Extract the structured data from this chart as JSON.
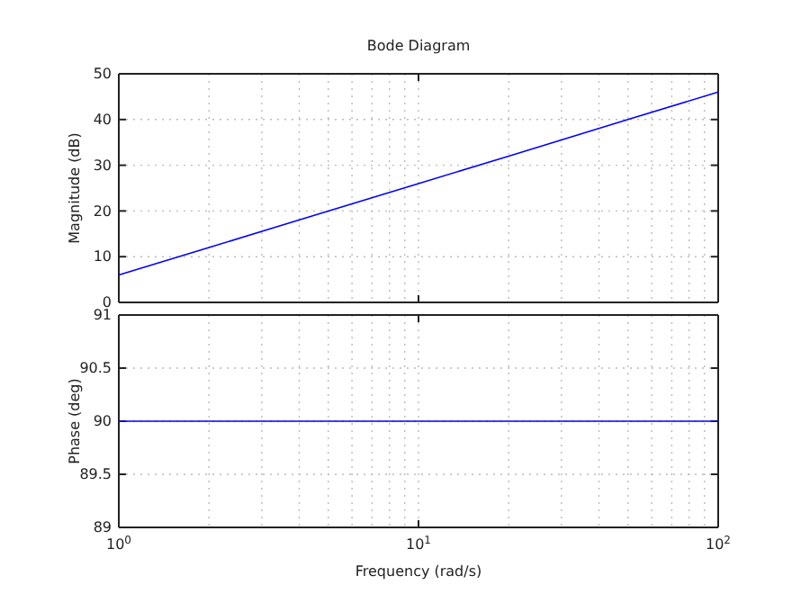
{
  "chart_data": [
    {
      "type": "line",
      "title": "Bode Diagram",
      "ylabel": "Magnitude (dB)",
      "x": [
        1,
        2,
        5,
        10,
        20,
        50,
        100
      ],
      "series": [
        {
          "color": "#0000ff",
          "values": [
            6,
            12,
            20,
            26,
            32,
            40,
            46
          ]
        }
      ],
      "xlim": [
        1,
        100
      ],
      "xticks": [
        {
          "value": 1,
          "label": null
        },
        {
          "value": 10,
          "label": null
        },
        {
          "value": 100,
          "label": null
        }
      ],
      "ylim": [
        0,
        50
      ],
      "yticks": [
        0,
        10,
        20,
        30,
        40,
        50
      ],
      "log": "x",
      "grid": true,
      "tick_labels": "y",
      "line_style": "solid"
    },
    {
      "type": "line",
      "xlabel": "Frequency (rad/s)",
      "ylabel": "Phase (deg)",
      "x": [
        1,
        2,
        5,
        10,
        20,
        50,
        100
      ],
      "series": [
        {
          "color": "#0000ff",
          "values": [
            90,
            90,
            90,
            90,
            90,
            90,
            90
          ]
        }
      ],
      "xlim": [
        1,
        100
      ],
      "xticks": [
        {
          "value": 1,
          "label": "10$^{0}$"
        },
        {
          "value": 10,
          "label": "10$^{1}$"
        },
        {
          "value": 100,
          "label": "10$^{2}$"
        }
      ],
      "ylim": [
        89,
        91
      ],
      "yticks": [
        89,
        89.5,
        90,
        90.5,
        91
      ],
      "log": "x",
      "grid": true,
      "line_style": "solid"
    }
  ]
}
